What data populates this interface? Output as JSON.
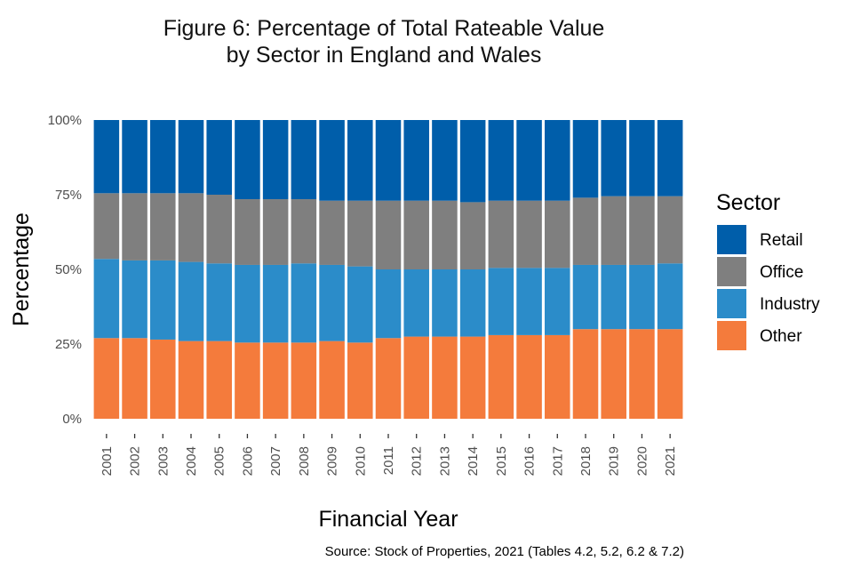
{
  "chart_data": {
    "type": "bar",
    "stacked": true,
    "title": "Figure 6: Percentage of Total Rateable Value",
    "subtitle": "by Sector in England and Wales",
    "xlabel": "Financial Year",
    "ylabel": "Percentage",
    "ylim": [
      0,
      100
    ],
    "yticks": [
      "0%",
      "25%",
      "50%",
      "75%",
      "100%"
    ],
    "ytick_values": [
      0,
      25,
      50,
      75,
      100
    ],
    "categories": [
      "2001",
      "2002",
      "2003",
      "2004",
      "2005",
      "2006",
      "2007",
      "2008",
      "2009",
      "2010",
      "2011",
      "2012",
      "2013",
      "2014",
      "2015",
      "2016",
      "2017",
      "2018",
      "2019",
      "2020",
      "2021"
    ],
    "legend_title": "Sector",
    "legend_position": "right",
    "series": [
      {
        "name": "Other",
        "color": "#F47B3C",
        "values": [
          27,
          27,
          26.5,
          26,
          26,
          25.5,
          25.5,
          25.5,
          26,
          25.5,
          27,
          27.5,
          27.5,
          27.5,
          28,
          28,
          28,
          30,
          30,
          30,
          30
        ]
      },
      {
        "name": "Industry",
        "color": "#2B8CC9",
        "values": [
          26.5,
          26,
          26.5,
          26.5,
          26,
          26,
          26,
          26.5,
          25.5,
          25.5,
          23,
          22.5,
          22.5,
          22.5,
          22.5,
          22.5,
          22.5,
          21.5,
          21.5,
          21.5,
          22
        ]
      },
      {
        "name": "Office",
        "color": "#7F7F7F",
        "values": [
          22,
          22.5,
          22.5,
          23,
          23,
          22,
          22,
          21.5,
          21.5,
          22,
          23,
          23,
          23,
          22.5,
          22.5,
          22.5,
          22.5,
          22.5,
          23,
          23,
          22.5
        ]
      },
      {
        "name": "Retail",
        "color": "#005EAA",
        "values": [
          24.5,
          24.5,
          24.5,
          24.5,
          25,
          26.5,
          26.5,
          26.5,
          27,
          27,
          27,
          27,
          27,
          27.5,
          27,
          27,
          27,
          26,
          25.5,
          25.5,
          25.5
        ]
      }
    ],
    "legend_order": [
      "Retail",
      "Office",
      "Industry",
      "Other"
    ],
    "source": "Source: Stock of Properties, 2021 (Tables 4.2, 5.2, 6.2 & 7.2)"
  }
}
